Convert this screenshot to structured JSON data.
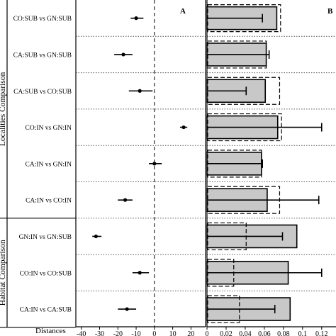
{
  "chart_data": [
    {
      "panel": "A",
      "type": "scatter",
      "xlabel": "Distances",
      "xlim": [
        -43,
        28
      ],
      "xticks": [
        -40,
        -30,
        -20,
        -10,
        0,
        10,
        20
      ],
      "reference_line": 0,
      "categories": [
        "CO:SUB vs GN:SUB",
        "CA:SUB vs GN:SUB",
        "CA:SUB vs CO:SUB",
        "CO:IN vs GN:IN",
        "CA:IN vs GN:IN",
        "CA:IN vs CO:IN",
        "GN:IN vs GN:SUB",
        "CO:IN vs CO:SUB",
        "CA:IN vs CA:SUB"
      ],
      "values": [
        -10,
        -17,
        -8,
        16,
        0,
        -16,
        -32,
        -8,
        -15
      ],
      "error_low": [
        -13,
        -22,
        -14,
        14,
        -3,
        -20,
        -34,
        -12,
        -20
      ],
      "error_high": [
        -6,
        -12,
        -1,
        18,
        4,
        -12,
        -29,
        -3,
        -10
      ]
    },
    {
      "panel": "B",
      "type": "bar",
      "xlim": [
        0,
        0.135
      ],
      "xticks": [
        "0",
        "0.02",
        "0.04",
        "0.06",
        "0.08",
        "0.1",
        "0.12"
      ],
      "categories": [
        "CO:SUB vs GN:SUB",
        "CA:SUB vs GN:SUB",
        "CA:SUB vs CO:SUB",
        "CO:IN vs GN:IN",
        "CA:IN vs GN:IN",
        "CA:IN vs CO:IN",
        "GN:IN vs GN:SUB",
        "CO:IN vs CO:SUB",
        "CA:IN vs CA:SUB"
      ],
      "values": [
        0.073,
        0.062,
        0.061,
        0.074,
        0.057,
        0.063,
        0.094,
        0.085,
        0.087
      ],
      "error_high": [
        0.058,
        0.065,
        0.041,
        0.12,
        0.058,
        0.117,
        0.079,
        0.12,
        0.071
      ],
      "dashed_values": [
        0.077,
        0.062,
        0.076,
        0.078,
        0.057,
        0.076,
        0.041,
        0.028,
        0.034
      ]
    }
  ],
  "groups": [
    {
      "label": "Localities Comparison",
      "from": 0,
      "to": 5
    },
    {
      "label": "Habitat Comparison",
      "from": 6,
      "to": 8
    }
  ],
  "colors": {
    "bar_fill": "#c8c8c8",
    "stroke": "#000000",
    "separator": "#555555"
  }
}
